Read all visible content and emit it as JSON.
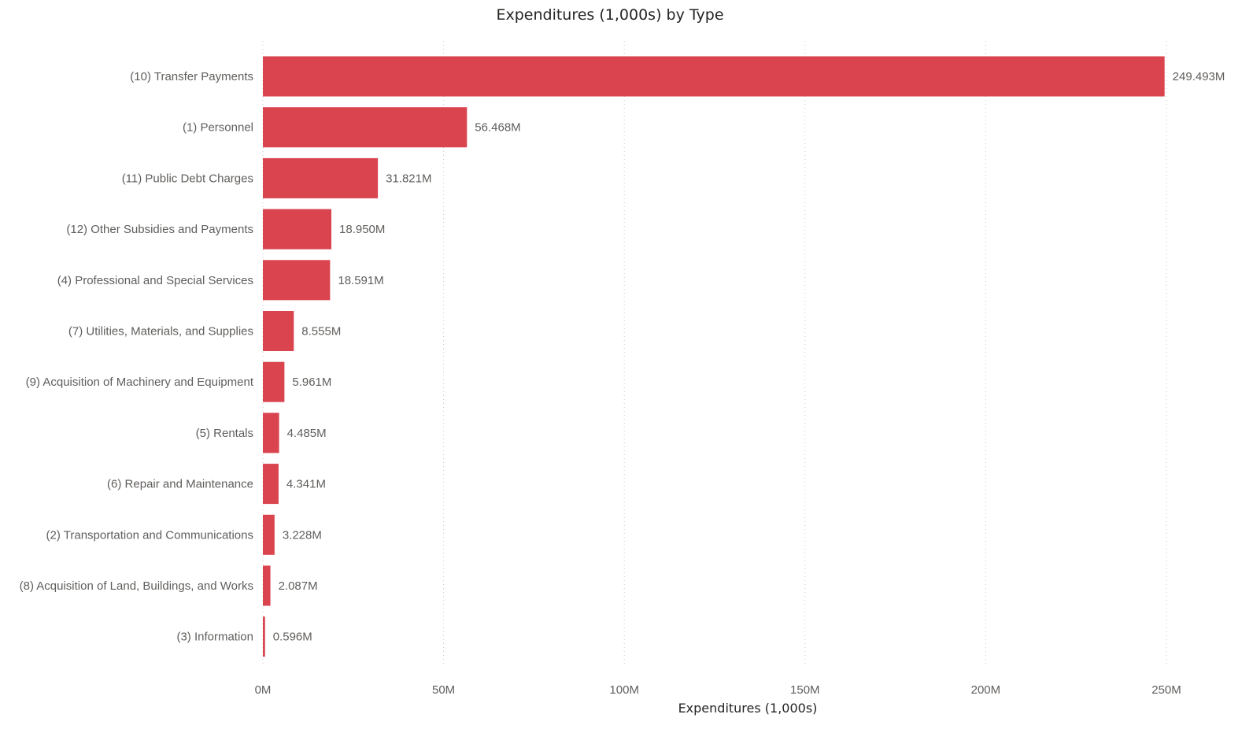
{
  "chart_data": {
    "type": "bar",
    "orientation": "horizontal",
    "title": "Expenditures (1,000s) by Type",
    "xlabel": "Expenditures (1,000s)",
    "ylabel": "",
    "bar_color": "#d9444f",
    "grid": true,
    "xlim": [
      0,
      250
    ],
    "x_ticks": [
      {
        "value": 0,
        "label": "0M"
      },
      {
        "value": 50,
        "label": "50M"
      },
      {
        "value": 100,
        "label": "100M"
      },
      {
        "value": 150,
        "label": "150M"
      },
      {
        "value": 200,
        "label": "200M"
      },
      {
        "value": 250,
        "label": "250M"
      }
    ],
    "categories": [
      "(10) Transfer Payments",
      "(1) Personnel",
      "(11) Public Debt Charges",
      "(12) Other Subsidies and Payments",
      "(4) Professional and Special Services",
      "(7) Utilities, Materials, and Supplies",
      "(9) Acquisition of Machinery and Equipment",
      "(5) Rentals",
      "(6) Repair and Maintenance",
      "(2) Transportation and Communications",
      "(8) Acquisition of Land, Buildings, and Works",
      "(3) Information"
    ],
    "values": [
      249.493,
      56.468,
      31.821,
      18.95,
      18.591,
      8.555,
      5.961,
      4.485,
      4.341,
      3.228,
      2.087,
      0.596
    ],
    "value_labels": [
      "249.493M",
      "56.468M",
      "31.821M",
      "18.950M",
      "18.591M",
      "8.555M",
      "5.961M",
      "4.485M",
      "4.341M",
      "3.228M",
      "2.087M",
      "0.596M"
    ]
  }
}
